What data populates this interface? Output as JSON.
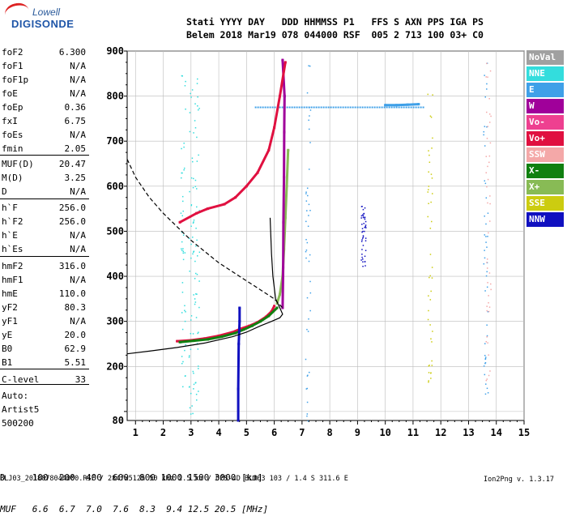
{
  "logo": {
    "line1": "Lowell",
    "line2": "DIGISONDE"
  },
  "header": {
    "line1": "Stati YYYY DAY   DDD HHMMSS P1   FFS S AXN PPS IGA PS",
    "line2": "Belem 2018 Mar19 078 044000 RSF  005 2 713 100 03+ C0"
  },
  "params": [
    {
      "name": "foF2",
      "value": "6.300"
    },
    {
      "name": "foF1",
      "value": "N/A"
    },
    {
      "name": "foF1p",
      "value": "N/A"
    },
    {
      "name": "foE",
      "value": "N/A"
    },
    {
      "name": "foEp",
      "value": "0.36"
    },
    {
      "name": "fxI",
      "value": "6.75"
    },
    {
      "name": "foEs",
      "value": "N/A"
    },
    {
      "name": "fmin",
      "value": "2.05"
    },
    {
      "name": "MUF(D)",
      "value": "20.47"
    },
    {
      "name": "M(D)",
      "value": "3.25"
    },
    {
      "name": "D",
      "value": "N/A"
    },
    {
      "name": "h`F",
      "value": "256.0"
    },
    {
      "name": "h`F2",
      "value": "256.0"
    },
    {
      "name": "h`E",
      "value": "N/A"
    },
    {
      "name": "h`Es",
      "value": "N/A"
    },
    {
      "name": "hmF2",
      "value": "316.0"
    },
    {
      "name": "hmF1",
      "value": "N/A"
    },
    {
      "name": "hmE",
      "value": "110.0"
    },
    {
      "name": "yF2",
      "value": "80.3"
    },
    {
      "name": "yF1",
      "value": "N/A"
    },
    {
      "name": "yE",
      "value": "20.0"
    },
    {
      "name": "B0",
      "value": "62.9"
    },
    {
      "name": "B1",
      "value": "5.51"
    },
    {
      "name": "C-level",
      "value": "33"
    }
  ],
  "auto": {
    "line1": "Auto:",
    "line2": "Artist5",
    "line3": "500200"
  },
  "legend": [
    {
      "label": "NoVal",
      "bg": "#a0a0a0",
      "fg": "#ffffff"
    },
    {
      "label": "NNE",
      "bg": "#33dddd",
      "fg": "#ffffff"
    },
    {
      "label": "E",
      "bg": "#3fa0e8",
      "fg": "#ffffff"
    },
    {
      "label": "W",
      "bg": "#a0009a",
      "fg": "#ffffff"
    },
    {
      "label": "Vo-",
      "bg": "#ee4090",
      "fg": "#ffffff"
    },
    {
      "label": "Vo+",
      "bg": "#e01040",
      "fg": "#ffffff"
    },
    {
      "label": "SSW",
      "bg": "#f4a8a8",
      "fg": "#ffffff"
    },
    {
      "label": "X-",
      "bg": "#108010",
      "fg": "#ffffff"
    },
    {
      "label": "X+",
      "bg": "#88bb55",
      "fg": "#ffffff"
    },
    {
      "label": "SSE",
      "bg": "#cccc10",
      "fg": "#ffffff"
    },
    {
      "label": "NNW",
      "bg": "#1010c0",
      "fg": "#ffffff"
    }
  ],
  "footer": {
    "d_row": "D     100  200  400  600  800 1000 1500 3000 [km]",
    "muf_row": "MUF   6.6  6.7  7.0  7.6  8.3  9.4 12.5 20.5 [MHz]",
    "bottom": "BLJ03_2018078044000.RSF / 284fx512h 50 kHz 2.5 km / DPS-4D BLJ03 103 / 1.4 S 311.6 E",
    "version": "Ion2Png v. 1.3.17"
  },
  "chart_data": {
    "type": "scatter",
    "xlim": [
      0.7,
      15.0
    ],
    "ylim": [
      80,
      900
    ],
    "xticks": [
      1,
      2,
      3,
      4,
      5,
      6,
      7,
      8,
      9,
      10,
      11,
      12,
      13,
      14,
      15
    ],
    "yticks": [
      100,
      200,
      300,
      400,
      500,
      600,
      700,
      800,
      900
    ],
    "ytick_labels": [
      "",
      "200",
      "300",
      "400",
      "500",
      "600",
      "700",
      "800",
      "900"
    ],
    "y_min_label": "80",
    "grid": true,
    "profile_solid": [
      [
        0.7,
        228
      ],
      [
        1.5,
        234
      ],
      [
        2.5,
        242
      ],
      [
        3.5,
        252
      ],
      [
        4.5,
        266
      ],
      [
        5.0,
        276
      ],
      [
        5.5,
        290
      ],
      [
        5.9,
        300
      ],
      [
        6.2,
        308
      ],
      [
        6.3,
        316
      ],
      [
        6.2,
        330
      ],
      [
        6.05,
        350
      ],
      [
        5.95,
        400
      ],
      [
        5.9,
        450
      ],
      [
        5.85,
        530
      ]
    ],
    "profile_dashed": [
      [
        0.7,
        660
      ],
      [
        1.0,
        620
      ],
      [
        1.5,
        575
      ],
      [
        2.0,
        540
      ],
      [
        2.5,
        510
      ],
      [
        3.0,
        480
      ],
      [
        3.5,
        455
      ],
      [
        4.0,
        430
      ],
      [
        4.5,
        410
      ],
      [
        5.0,
        390
      ],
      [
        5.5,
        370
      ],
      [
        6.0,
        350
      ],
      [
        6.3,
        330
      ]
    ],
    "traces": [
      {
        "series": "Vo+",
        "color": "#e01040",
        "points": [
          [
            2.5,
            256
          ],
          [
            3.0,
            258
          ],
          [
            3.5,
            262
          ],
          [
            4.0,
            268
          ],
          [
            4.5,
            276
          ],
          [
            4.8,
            284
          ],
          [
            5.1,
            290
          ],
          [
            5.4,
            298
          ],
          [
            5.7,
            310
          ],
          [
            5.9,
            322
          ],
          [
            6.0,
            334
          ]
        ]
      },
      {
        "series": "X-",
        "color": "#108010",
        "points": [
          [
            2.6,
            254
          ],
          [
            3.1,
            257
          ],
          [
            3.6,
            260
          ],
          [
            4.1,
            266
          ],
          [
            4.6,
            274
          ],
          [
            4.9,
            282
          ],
          [
            5.2,
            290
          ],
          [
            5.5,
            300
          ],
          [
            5.8,
            312
          ],
          [
            6.1,
            330
          ]
        ]
      },
      {
        "series": "X+",
        "color": "#88bb55",
        "points": [
          [
            6.1,
            340
          ],
          [
            6.2,
            360
          ],
          [
            6.3,
            400
          ],
          [
            6.35,
            460
          ],
          [
            6.4,
            530
          ],
          [
            6.45,
            600
          ],
          [
            6.5,
            680
          ]
        ]
      },
      {
        "series": "W",
        "color": "#a0009a",
        "points": [
          [
            6.3,
            330
          ],
          [
            6.32,
            420
          ],
          [
            6.33,
            520
          ],
          [
            6.35,
            620
          ],
          [
            6.36,
            720
          ],
          [
            6.37,
            800
          ],
          [
            6.3,
            880
          ]
        ]
      },
      {
        "series": "Vo+ 2nd",
        "color": "#e01040",
        "points": [
          [
            2.6,
            520
          ],
          [
            3.2,
            540
          ],
          [
            3.6,
            550
          ],
          [
            4.2,
            560
          ],
          [
            4.6,
            575
          ],
          [
            5.0,
            600
          ],
          [
            5.4,
            630
          ],
          [
            5.8,
            680
          ],
          [
            6.0,
            730
          ],
          [
            6.2,
            800
          ],
          [
            6.4,
            875
          ]
        ]
      },
      {
        "series": "E spread",
        "color": "#3fa0e8",
        "points": [
          [
            10.0,
            780
          ],
          [
            10.4,
            780
          ],
          [
            10.8,
            781
          ],
          [
            11.2,
            782
          ]
        ]
      },
      {
        "series": "NNW",
        "color": "#1010c0",
        "points": [
          [
            4.7,
            80
          ],
          [
            4.7,
            150
          ],
          [
            4.72,
            250
          ],
          [
            4.75,
            300
          ],
          [
            4.75,
            330
          ]
        ]
      }
    ]
  }
}
